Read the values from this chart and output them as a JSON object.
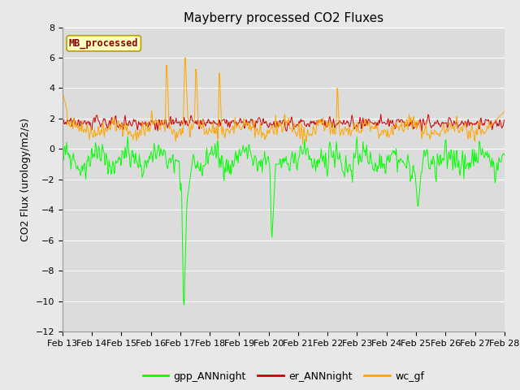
{
  "title": "Mayberry processed CO2 Fluxes",
  "ylabel": "CO2 Flux (urology/m2/s)",
  "ylim": [
    -12,
    8
  ],
  "yticks": [
    -12,
    -10,
    -8,
    -6,
    -4,
    -2,
    0,
    2,
    4,
    6,
    8
  ],
  "n_days": 15,
  "xtick_labels": [
    "Feb 13",
    "Feb 14",
    "Feb 15",
    "Feb 16",
    "Feb 17",
    "Feb 18",
    "Feb 19",
    "Feb 20",
    "Feb 21",
    "Feb 22",
    "Feb 23",
    "Feb 24",
    "Feb 25",
    "Feb 26",
    "Feb 27",
    "Feb 28"
  ],
  "legend_label": "MB_processed",
  "legend_text_color": "#8B0000",
  "legend_box_facecolor": "#FFFFC0",
  "legend_box_edgecolor": "#B8A000",
  "series_labels": [
    "gpp_ANNnight",
    "er_ANNnight",
    "wc_gf"
  ],
  "series_colors": [
    "#00FF00",
    "#CC0000",
    "#FFA500"
  ],
  "fig_facecolor": "#E8E8E8",
  "ax_facecolor": "#DCDCDC",
  "grid_color": "#FFFFFF",
  "title_fontsize": 11,
  "axis_fontsize": 9,
  "tick_fontsize": 8,
  "legend_fontsize": 9
}
